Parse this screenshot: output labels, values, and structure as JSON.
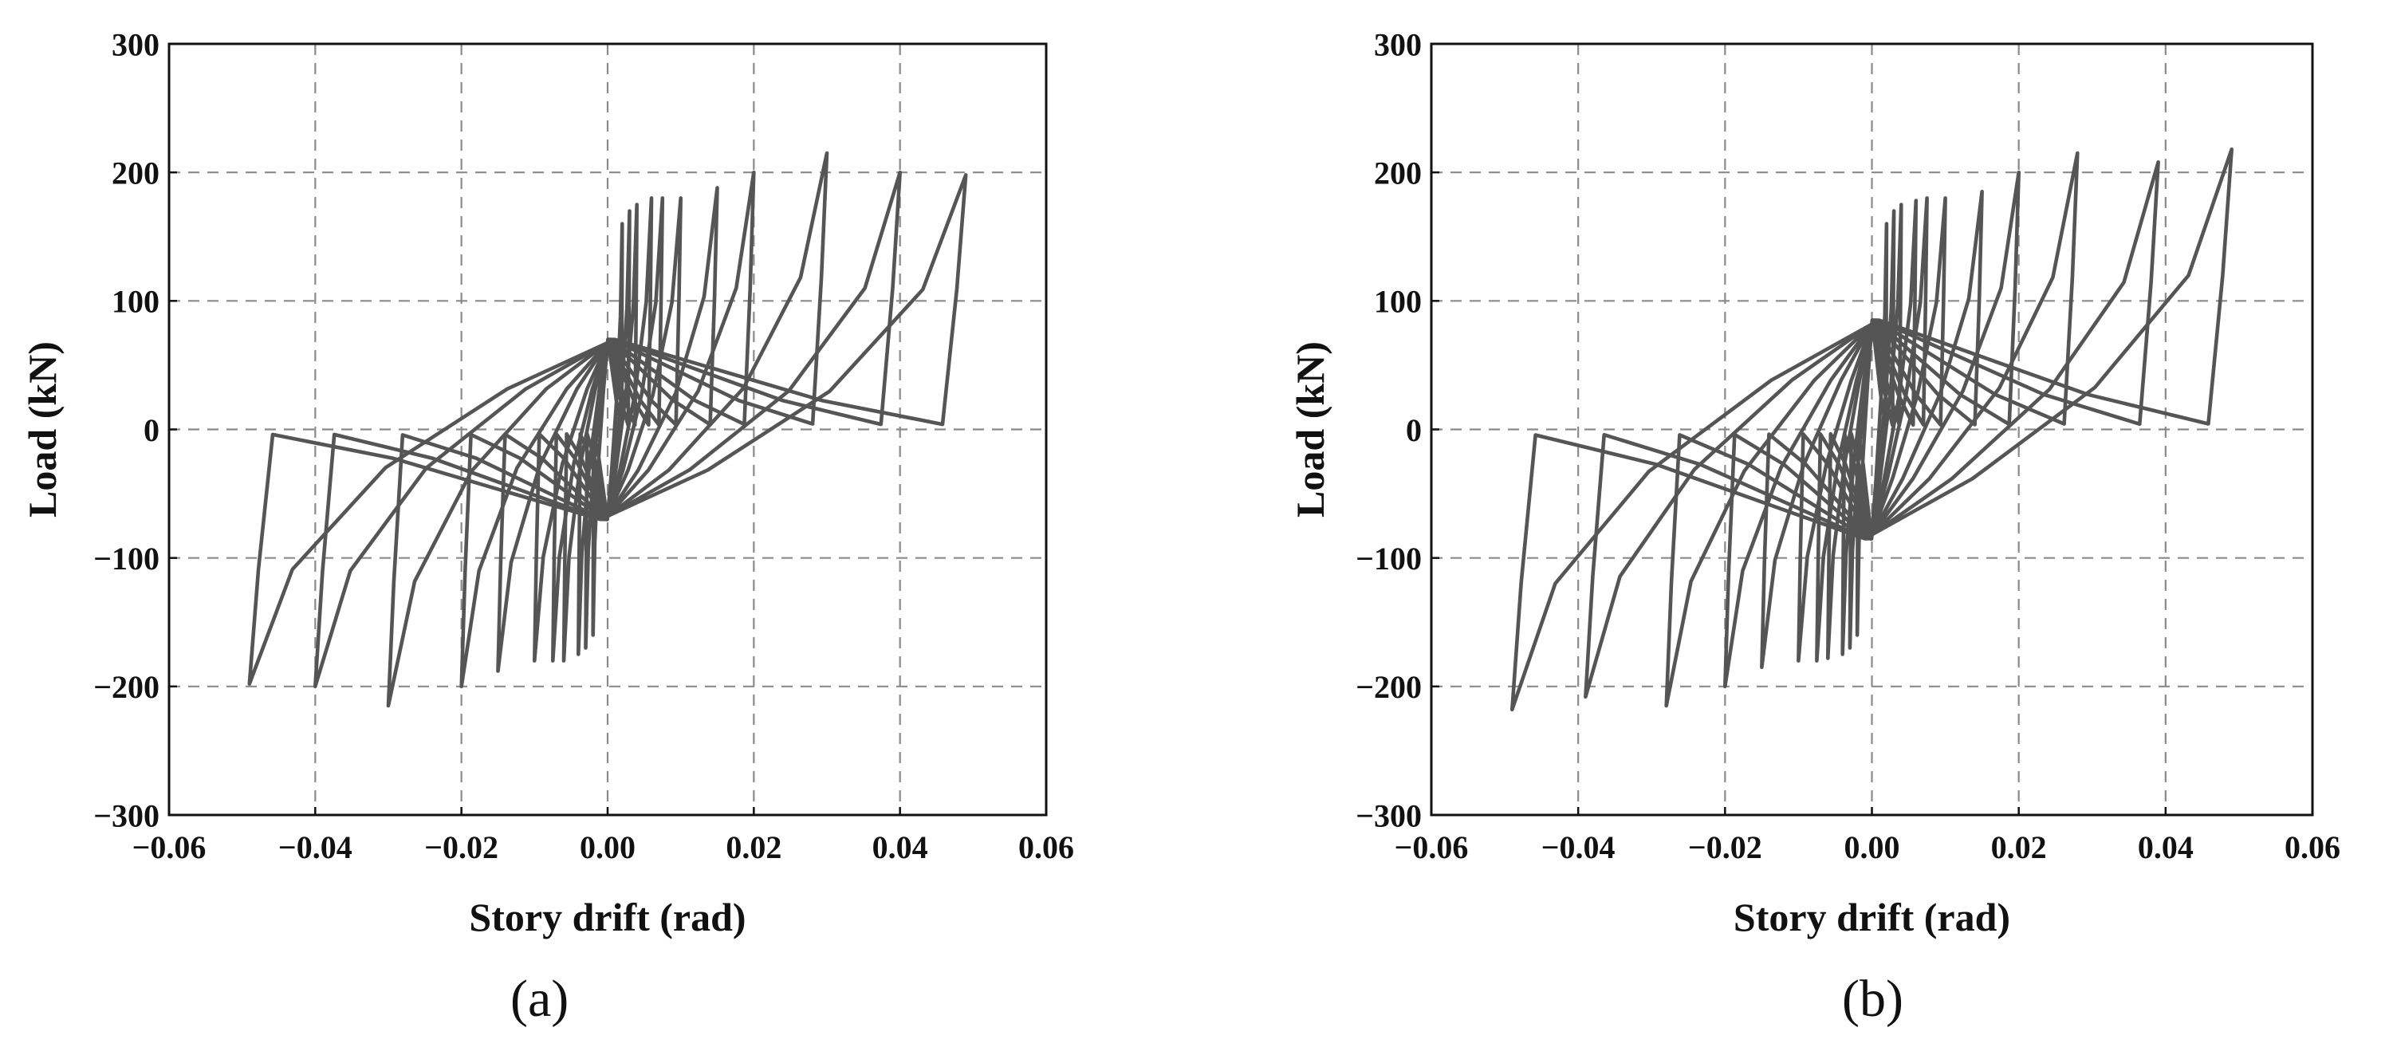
{
  "chart_data": [
    {
      "type": "line",
      "panel_label": "(a)",
      "xlabel": "Story drift (rad)",
      "ylabel": "Load (kN)",
      "xlim": [
        -0.06,
        0.06
      ],
      "ylim": [
        -300,
        300
      ],
      "x_ticks": [
        -0.06,
        -0.04,
        -0.02,
        0.0,
        0.02,
        0.04,
        0.06
      ],
      "y_ticks": [
        -300,
        -200,
        -100,
        0,
        100,
        200,
        300
      ],
      "x_tick_labels": [
        "−0.06",
        "−0.04",
        "−0.02",
        "0.00",
        "0.02",
        "0.04",
        "0.06"
      ],
      "y_tick_labels": [
        "−300",
        "−200",
        "−100",
        "0",
        "100",
        "200",
        "300"
      ],
      "grid": true,
      "line_color": "#555555",
      "pinch_load": 70,
      "cycles": [
        {
          "drift": 0.002,
          "peak_load": 160
        },
        {
          "drift": 0.003,
          "peak_load": 170
        },
        {
          "drift": 0.004,
          "peak_load": 175
        },
        {
          "drift": 0.006,
          "peak_load": 180
        },
        {
          "drift": 0.0075,
          "peak_load": 180
        },
        {
          "drift": 0.01,
          "peak_load": 180
        },
        {
          "drift": 0.015,
          "peak_load": 188
        },
        {
          "drift": 0.02,
          "peak_load": 200
        },
        {
          "drift": 0.03,
          "peak_load": 215
        },
        {
          "drift": 0.04,
          "peak_load": 200
        },
        {
          "drift": 0.049,
          "peak_load": 198
        }
      ]
    },
    {
      "type": "line",
      "panel_label": "(b)",
      "xlabel": "Story drift (rad)",
      "ylabel": "Load (kN)",
      "xlim": [
        -0.06,
        0.06
      ],
      "ylim": [
        -300,
        300
      ],
      "x_ticks": [
        -0.06,
        -0.04,
        -0.02,
        0.0,
        0.02,
        0.04,
        0.06
      ],
      "y_ticks": [
        -300,
        -200,
        -100,
        0,
        100,
        200,
        300
      ],
      "x_tick_labels": [
        "−0.06",
        "−0.04",
        "−0.02",
        "0.00",
        "0.02",
        "0.04",
        "0.06"
      ],
      "y_tick_labels": [
        "−300",
        "−200",
        "−100",
        "0",
        "100",
        "200",
        "300"
      ],
      "grid": true,
      "line_color": "#555555",
      "pinch_load": 85,
      "cycles": [
        {
          "drift": 0.002,
          "peak_load": 160
        },
        {
          "drift": 0.003,
          "peak_load": 170
        },
        {
          "drift": 0.004,
          "peak_load": 175
        },
        {
          "drift": 0.006,
          "peak_load": 178
        },
        {
          "drift": 0.0075,
          "peak_load": 180
        },
        {
          "drift": 0.01,
          "peak_load": 180
        },
        {
          "drift": 0.015,
          "peak_load": 185
        },
        {
          "drift": 0.02,
          "peak_load": 200
        },
        {
          "drift": 0.028,
          "peak_load": 215
        },
        {
          "drift": 0.039,
          "peak_load": 208
        },
        {
          "drift": 0.049,
          "peak_load": 218
        }
      ]
    }
  ]
}
